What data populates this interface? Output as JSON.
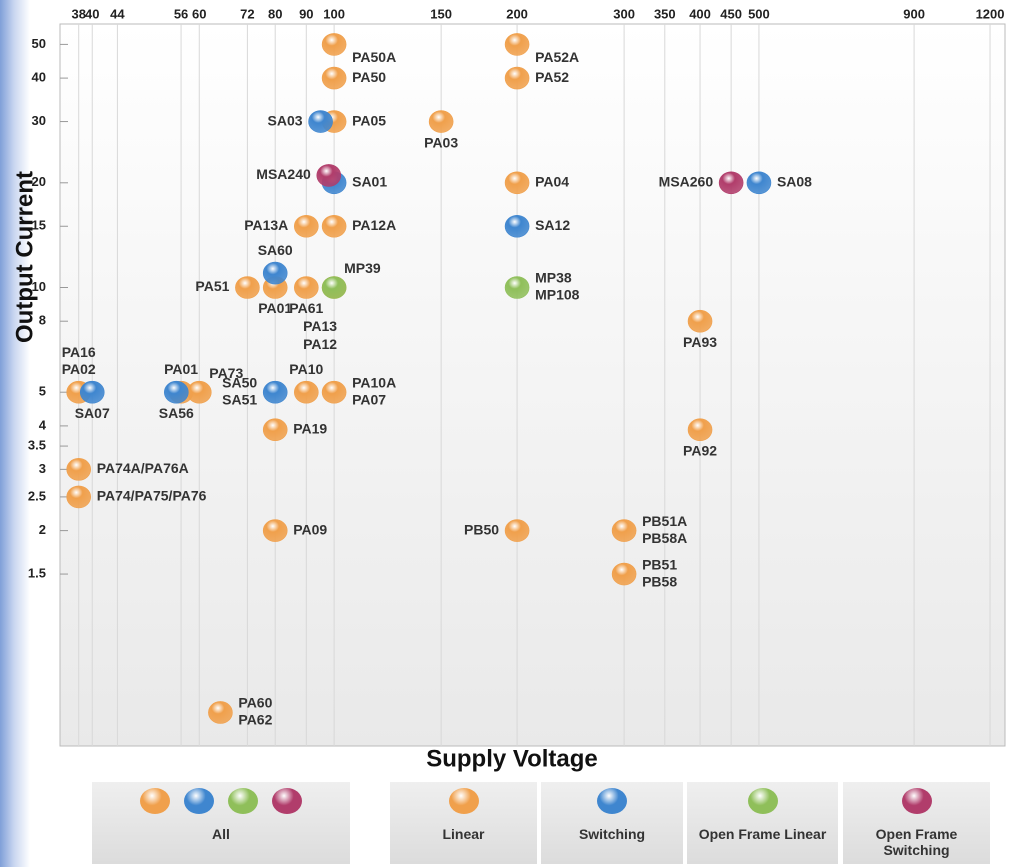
{
  "chart_data": {
    "type": "scatter",
    "xlabel": "Supply Voltage",
    "ylabel": "Output Current",
    "xscale": "log",
    "yscale": "log",
    "xlim": [
      35.4,
      1270
    ],
    "ylim": [
      0.5,
      55
    ],
    "xticks": [
      38,
      40,
      44,
      56,
      60,
      72,
      80,
      90,
      100,
      150,
      200,
      300,
      350,
      400,
      450,
      500,
      900,
      1200
    ],
    "yticks": [
      1.5,
      2,
      2.5,
      3,
      3.5,
      4,
      5,
      8,
      10,
      15,
      20,
      30,
      40,
      50
    ],
    "grid": true,
    "legend_all": "All",
    "series": [
      {
        "name": "Linear",
        "color": "#f0a04c",
        "x": [
          100,
          200,
          100,
          200,
          100,
          150,
          200,
          90,
          100,
          72,
          80,
          90,
          100,
          400,
          38,
          56,
          60,
          90,
          100,
          80,
          400,
          38,
          38,
          80,
          200,
          300,
          300,
          65
        ],
        "values": [
          50,
          50,
          40,
          40,
          30,
          30,
          20,
          15,
          15,
          10,
          10,
          10,
          10,
          8,
          5,
          5,
          5,
          5,
          5,
          3.9,
          3.9,
          3,
          2.5,
          2,
          2,
          2,
          1.5,
          0.6
        ],
        "point_labels": [
          [
            "PA50A"
          ],
          [
            "PA52A"
          ],
          [
            "PA50"
          ],
          [
            "PA52"
          ],
          [
            "PA05"
          ],
          [
            "PA03"
          ],
          [
            "PA04"
          ],
          [
            "PA13A"
          ],
          [
            "PA12A"
          ],
          [
            "PA51"
          ],
          [
            "PA01"
          ],
          [
            "PA61"
          ],
          [
            "PA13",
            "PA12"
          ],
          [
            "PA93"
          ],
          [
            "PA16",
            "PA02"
          ],
          [
            "PA01"
          ],
          [
            "PA73"
          ],
          [
            "PA10"
          ],
          [
            "PA10A",
            "PA07"
          ],
          [
            "PA19"
          ],
          [
            "PA92"
          ],
          [
            "PA74A/PA76A"
          ],
          [
            "PA74/PA75/PA76"
          ],
          [
            "PA09"
          ],
          [
            "PB50"
          ],
          [
            "PB51A",
            "PB58A"
          ],
          [
            "PB51",
            "PB58"
          ],
          [
            "PA60",
            "PA62"
          ]
        ]
      },
      {
        "name": "Switching",
        "color": "#3f86cf",
        "x": [
          95,
          100,
          200,
          80,
          40,
          55,
          80,
          500
        ],
        "values": [
          30,
          20,
          15,
          11,
          5,
          5,
          5,
          20
        ],
        "point_labels": [
          [
            "SA03"
          ],
          [
            "SA01"
          ],
          [
            "SA12"
          ],
          [
            "SA60"
          ],
          [
            "SA07"
          ],
          [
            "SA56"
          ],
          [
            "SA50",
            "SA51"
          ],
          [
            "SA08"
          ]
        ]
      },
      {
        "name": "Open Frame Linear",
        "color": "#8fbf5a",
        "x": [
          100,
          200
        ],
        "values": [
          10,
          10
        ],
        "point_labels": [
          [
            "MP39"
          ],
          [
            "MP38",
            "MP108"
          ]
        ]
      },
      {
        "name": "Open Frame Switching",
        "color": "#b13d6b",
        "x": [
          98,
          450
        ],
        "values": [
          21,
          20
        ],
        "point_labels": [
          [
            "MSA240"
          ],
          [
            "MSA260"
          ]
        ]
      }
    ]
  }
}
